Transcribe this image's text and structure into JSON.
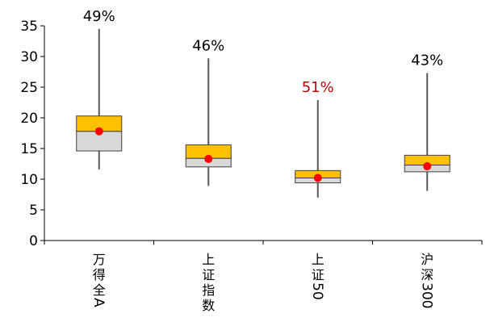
{
  "chart_data": {
    "type": "boxplot",
    "title": "",
    "xlabel": "",
    "ylabel": "",
    "ylim": [
      0,
      35
    ],
    "yticks": [
      "0",
      "5",
      "10",
      "15",
      "20",
      "25",
      "30",
      "35"
    ],
    "grid": false,
    "legend": "none",
    "categories": [
      "万得全A",
      "上证指数",
      "上证50",
      "沪深300"
    ],
    "series": [
      {
        "min": 11.6,
        "q1": 14.6,
        "median": 17.8,
        "q3": 20.3,
        "max": 34.5,
        "current": 17.8,
        "percentile_label": "49%"
      },
      {
        "min": 8.9,
        "q1": 12.0,
        "median": 13.4,
        "q3": 15.6,
        "max": 29.7,
        "current": 13.3,
        "percentile_label": "46%"
      },
      {
        "min": 7.0,
        "q1": 9.4,
        "median": 10.2,
        "q3": 11.4,
        "max": 22.9,
        "current": 10.2,
        "percentile_label": "51%"
      },
      {
        "min": 8.1,
        "q1": 11.2,
        "median": 12.3,
        "q3": 13.9,
        "max": 27.3,
        "current": 12.1,
        "percentile_label": "43%"
      }
    ],
    "highlight_label_index": 2,
    "colors": {
      "upper_box": "#FFC000",
      "lower_box": "#D9D9D9",
      "box_stroke": "#404040",
      "whisker": "#595959",
      "current_marker": "#FF0000",
      "label_default": "#000000",
      "label_highlight": "#C00000",
      "axis": "#000000"
    }
  }
}
